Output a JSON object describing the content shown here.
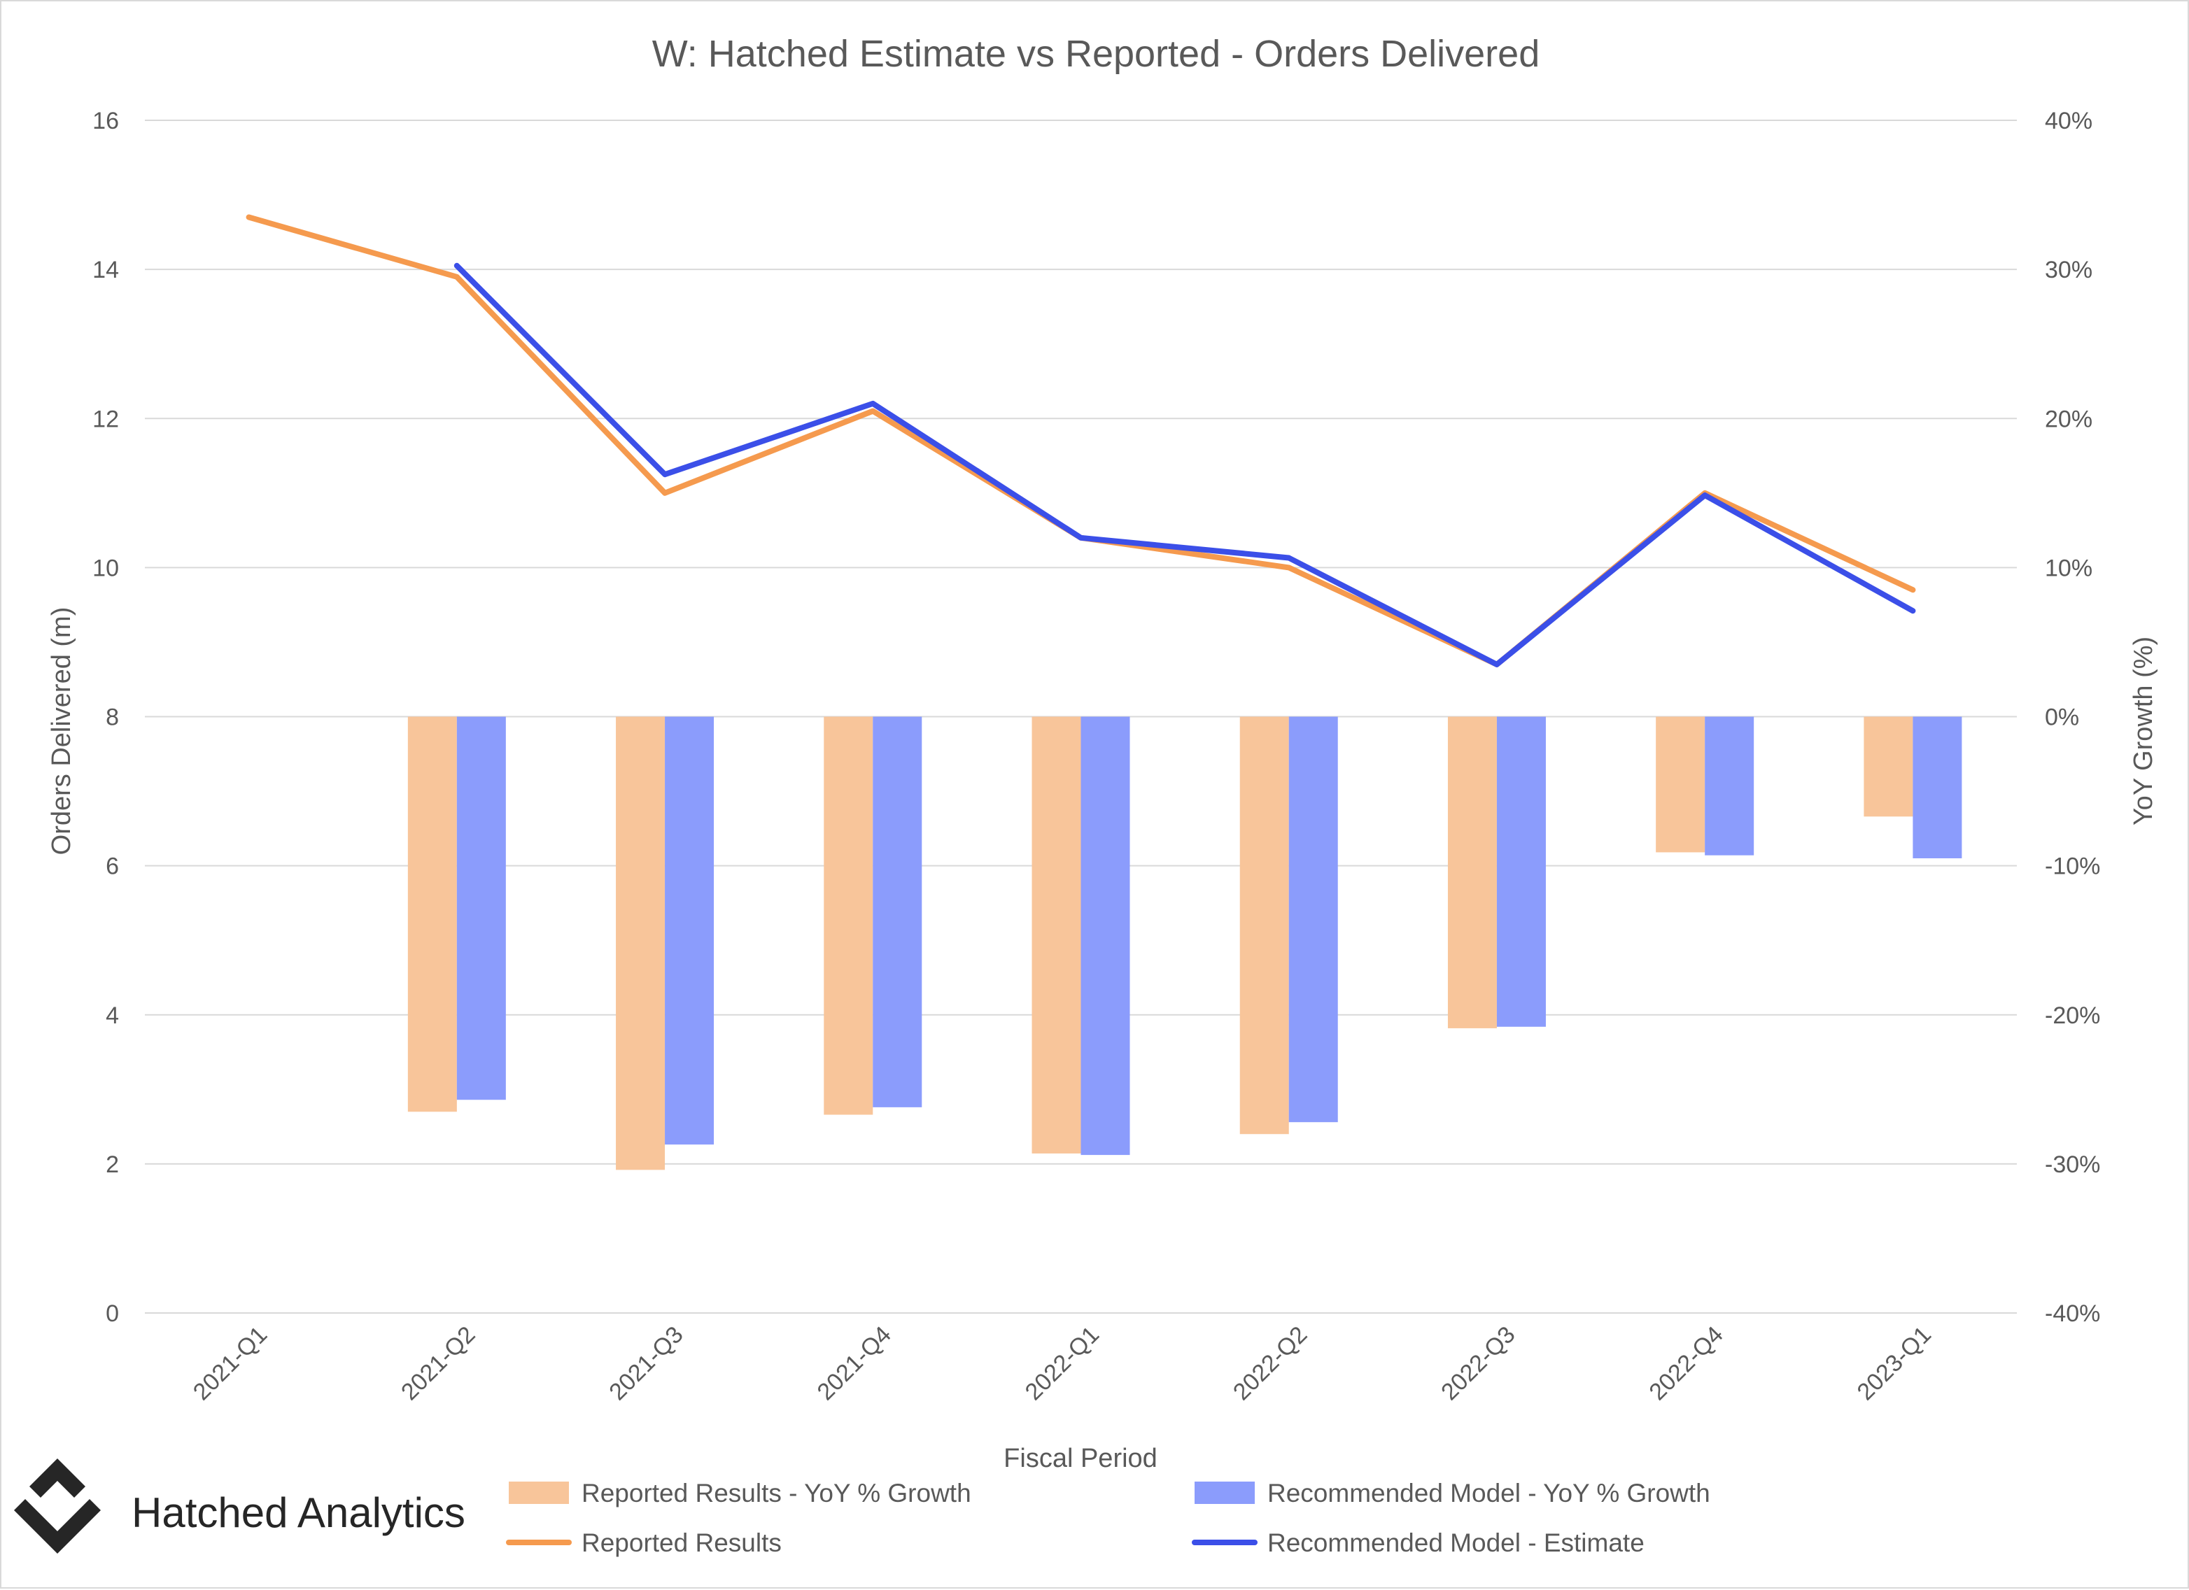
{
  "brand": {
    "name": "Hatched Analytics",
    "logo_icon": "diamond-chevron-logo-icon"
  },
  "chart_data": {
    "type": "bar",
    "title": "W: Hatched Estimate vs Reported - Orders Delivered",
    "xlabel": "Fiscal Period",
    "ylabel": "Orders Delivered (m)",
    "y2label": "YoY Growth (%)",
    "categories": [
      "2021-Q1",
      "2021-Q2",
      "2021-Q3",
      "2021-Q4",
      "2022-Q1",
      "2022-Q2",
      "2022-Q3",
      "2022-Q4",
      "2023-Q1"
    ],
    "ylim": [
      0,
      16
    ],
    "yticks": [
      "0",
      "2",
      "4",
      "6",
      "8",
      "10",
      "12",
      "14",
      "16"
    ],
    "y2lim": [
      -40,
      40
    ],
    "y2ticks": [
      "-40%",
      "-30%",
      "-20%",
      "-10%",
      "0%",
      "10%",
      "20%",
      "30%",
      "40%"
    ],
    "grid": true,
    "legend_position": "bottom",
    "bar_series": [
      {
        "name": "Reported Results - YoY % Growth",
        "axis": "right",
        "color": "#F8C59A",
        "values": [
          null,
          -26.5,
          -30.4,
          -26.7,
          -29.3,
          -28.0,
          -20.9,
          -9.1,
          -6.7
        ]
      },
      {
        "name": "Recommended Model - YoY % Growth",
        "axis": "right",
        "color": "#8B9CFC",
        "values": [
          null,
          -25.7,
          -28.7,
          -26.2,
          -29.4,
          -27.2,
          -20.8,
          -9.3,
          -9.5
        ]
      }
    ],
    "line_series": [
      {
        "name": "Reported Results",
        "axis": "left",
        "color": "#F59A4E",
        "values": [
          14.7,
          13.9,
          11.0,
          12.1,
          10.4,
          10.0,
          8.7,
          11.0,
          9.7
        ]
      },
      {
        "name": "Recommended Model - Estimate",
        "axis": "left",
        "color": "#3B4FE8",
        "values": [
          null,
          14.05,
          11.25,
          12.2,
          10.4,
          10.13,
          8.7,
          10.97,
          9.42
        ]
      }
    ],
    "legend_order": [
      "Reported Results - YoY % Growth",
      "Recommended Model - YoY % Growth",
      "Reported Results",
      "Recommended Model - Estimate"
    ]
  }
}
